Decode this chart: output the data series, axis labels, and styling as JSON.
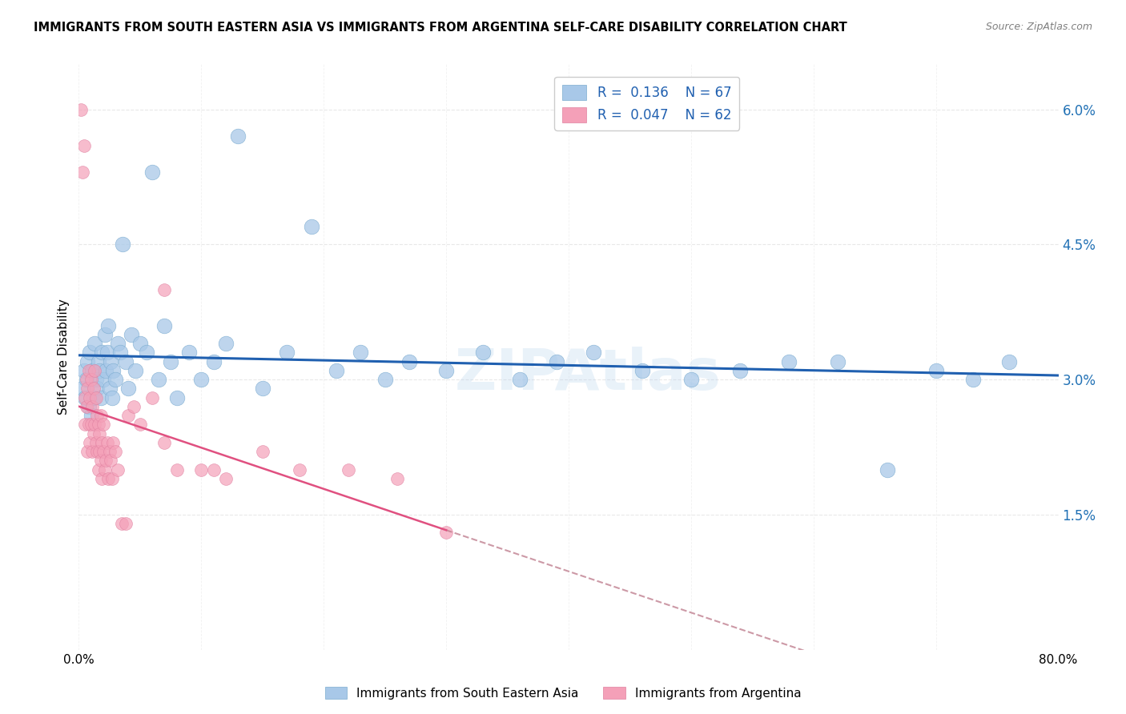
{
  "title": "IMMIGRANTS FROM SOUTH EASTERN ASIA VS IMMIGRANTS FROM ARGENTINA SELF-CARE DISABILITY CORRELATION CHART",
  "source": "Source: ZipAtlas.com",
  "ylabel": "Self-Care Disability",
  "legend_label_1": "Immigrants from South Eastern Asia",
  "legend_label_2": "Immigrants from Argentina",
  "R1": "0.136",
  "N1": "67",
  "R2": "0.047",
  "N2": "62",
  "color_blue": "#a8c8e8",
  "color_pink": "#f4a0b8",
  "color_blue_line": "#2060b0",
  "color_pink_line": "#e05080",
  "color_dashed": "#c08090",
  "watermark": "ZIPAtlas",
  "xlim": [
    0.0,
    0.8
  ],
  "ylim": [
    0.0,
    0.065
  ],
  "yticks": [
    0.015,
    0.03,
    0.045,
    0.06
  ],
  "ytick_labels": [
    "1.5%",
    "3.0%",
    "4.5%",
    "6.0%"
  ],
  "blue_x": [
    0.003,
    0.004,
    0.005,
    0.006,
    0.007,
    0.008,
    0.009,
    0.01,
    0.011,
    0.012,
    0.013,
    0.014,
    0.015,
    0.016,
    0.017,
    0.018,
    0.019,
    0.02,
    0.021,
    0.022,
    0.023,
    0.024,
    0.025,
    0.026,
    0.027,
    0.028,
    0.03,
    0.032,
    0.034,
    0.036,
    0.038,
    0.04,
    0.043,
    0.046,
    0.05,
    0.055,
    0.06,
    0.065,
    0.07,
    0.075,
    0.08,
    0.09,
    0.1,
    0.11,
    0.12,
    0.13,
    0.15,
    0.17,
    0.19,
    0.21,
    0.23,
    0.25,
    0.27,
    0.3,
    0.33,
    0.36,
    0.39,
    0.42,
    0.46,
    0.5,
    0.54,
    0.58,
    0.62,
    0.66,
    0.7,
    0.73,
    0.76
  ],
  "blue_y": [
    0.029,
    0.031,
    0.028,
    0.03,
    0.032,
    0.027,
    0.033,
    0.026,
    0.031,
    0.028,
    0.034,
    0.03,
    0.029,
    0.032,
    0.031,
    0.028,
    0.033,
    0.03,
    0.035,
    0.031,
    0.033,
    0.036,
    0.029,
    0.032,
    0.028,
    0.031,
    0.03,
    0.034,
    0.033,
    0.045,
    0.032,
    0.029,
    0.035,
    0.031,
    0.034,
    0.033,
    0.053,
    0.03,
    0.036,
    0.032,
    0.028,
    0.033,
    0.03,
    0.032,
    0.034,
    0.057,
    0.029,
    0.033,
    0.047,
    0.031,
    0.033,
    0.03,
    0.032,
    0.031,
    0.033,
    0.03,
    0.032,
    0.033,
    0.031,
    0.03,
    0.031,
    0.032,
    0.032,
    0.02,
    0.031,
    0.03,
    0.032
  ],
  "pink_x": [
    0.002,
    0.003,
    0.004,
    0.005,
    0.005,
    0.006,
    0.006,
    0.007,
    0.007,
    0.008,
    0.008,
    0.009,
    0.009,
    0.01,
    0.01,
    0.011,
    0.011,
    0.012,
    0.012,
    0.013,
    0.013,
    0.014,
    0.014,
    0.015,
    0.015,
    0.016,
    0.016,
    0.017,
    0.017,
    0.018,
    0.018,
    0.019,
    0.019,
    0.02,
    0.02,
    0.021,
    0.022,
    0.023,
    0.024,
    0.025,
    0.026,
    0.027,
    0.028,
    0.03,
    0.032,
    0.035,
    0.038,
    0.04,
    0.045,
    0.05,
    0.06,
    0.07,
    0.08,
    0.1,
    0.12,
    0.15,
    0.18,
    0.22,
    0.26,
    0.3,
    0.07,
    0.11
  ],
  "pink_y": [
    0.06,
    0.053,
    0.056,
    0.028,
    0.025,
    0.03,
    0.027,
    0.029,
    0.022,
    0.031,
    0.025,
    0.028,
    0.023,
    0.03,
    0.025,
    0.027,
    0.022,
    0.029,
    0.024,
    0.031,
    0.025,
    0.023,
    0.028,
    0.026,
    0.022,
    0.025,
    0.02,
    0.024,
    0.022,
    0.026,
    0.021,
    0.023,
    0.019,
    0.025,
    0.022,
    0.02,
    0.021,
    0.023,
    0.019,
    0.022,
    0.021,
    0.019,
    0.023,
    0.022,
    0.02,
    0.014,
    0.014,
    0.026,
    0.027,
    0.025,
    0.028,
    0.023,
    0.02,
    0.02,
    0.019,
    0.022,
    0.02,
    0.02,
    0.019,
    0.013,
    0.04,
    0.02
  ]
}
